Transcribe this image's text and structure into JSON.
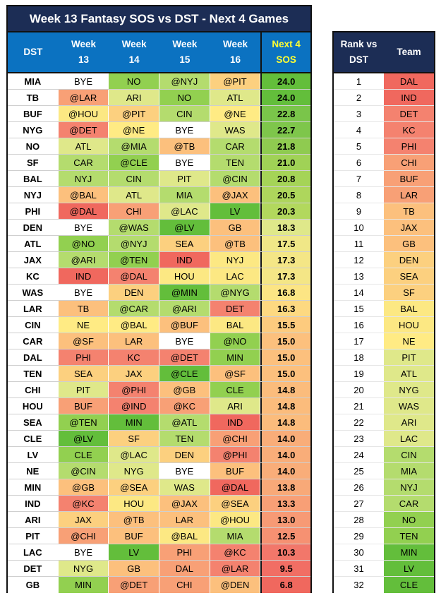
{
  "title": "Week 13 Fantasy SOS vs DST - Next 4 Games",
  "headers": {
    "dst": "DST",
    "weeks": [
      [
        "Week",
        "13"
      ],
      [
        "Week",
        "14"
      ],
      [
        "Week",
        "15"
      ],
      [
        "Week",
        "16"
      ]
    ],
    "next4": [
      "Next 4",
      "SOS"
    ]
  },
  "colors": {
    "white": "#ffffff",
    "g1": "#63be3b",
    "g2": "#92d050",
    "g3": "#b4dc6e",
    "y1": "#dfe88a",
    "y2": "#ffeb84",
    "o1": "#fcc07d",
    "o2": "#f8a076",
    "r1": "#f4826f",
    "r2": "#f0685e"
  },
  "rows": [
    {
      "team": "MIA",
      "games": [
        "BYE",
        "NO",
        "@NYJ",
        "@PIT"
      ],
      "bg": [
        "#ffffff",
        "#92d050",
        "#b4dc6e",
        "#fcd07f"
      ],
      "sos": "24.0",
      "sos_bg": "#63be3b"
    },
    {
      "team": "TB",
      "games": [
        "@LAR",
        "ARI",
        "NO",
        "ATL"
      ],
      "bg": [
        "#f8a076",
        "#dfe88a",
        "#92d050",
        "#dfe88a"
      ],
      "sos": "24.0",
      "sos_bg": "#63be3b"
    },
    {
      "team": "BUF",
      "games": [
        "@HOU",
        "@PIT",
        "CIN",
        "@NE"
      ],
      "bg": [
        "#fce883",
        "#fcd07f",
        "#b4dc6e",
        "#ffeb84"
      ],
      "sos": "22.8",
      "sos_bg": "#7ac54a"
    },
    {
      "team": "NYG",
      "games": [
        "@DET",
        "@NE",
        "BYE",
        "WAS"
      ],
      "bg": [
        "#f4826f",
        "#ffeb84",
        "#ffffff",
        "#dfe88a"
      ],
      "sos": "22.7",
      "sos_bg": "#7ec64b"
    },
    {
      "team": "NO",
      "games": [
        "ATL",
        "@MIA",
        "@TB",
        "CAR"
      ],
      "bg": [
        "#dfe88a",
        "#b4dc6e",
        "#fcc07d",
        "#b4dc6e"
      ],
      "sos": "21.8",
      "sos_bg": "#8fcb50"
    },
    {
      "team": "SF",
      "games": [
        "CAR",
        "@CLE",
        "BYE",
        "TEN"
      ],
      "bg": [
        "#b4dc6e",
        "#92d050",
        "#ffffff",
        "#b4dc6e"
      ],
      "sos": "21.0",
      "sos_bg": "#a0d256"
    },
    {
      "team": "BAL",
      "games": [
        "NYJ",
        "CIN",
        "PIT",
        "@CIN"
      ],
      "bg": [
        "#b4dc6e",
        "#b4dc6e",
        "#dfe88a",
        "#b4dc6e"
      ],
      "sos": "20.8",
      "sos_bg": "#a5d457"
    },
    {
      "team": "NYJ",
      "games": [
        "@BAL",
        "ATL",
        "MIA",
        "@JAX"
      ],
      "bg": [
        "#fcc07d",
        "#dfe88a",
        "#b4dc6e",
        "#fcc07d"
      ],
      "sos": "20.5",
      "sos_bg": "#aed65c"
    },
    {
      "team": "PHI",
      "games": [
        "@DAL",
        "CHI",
        "@LAC",
        "LV"
      ],
      "bg": [
        "#f0685e",
        "#f8a076",
        "#dfe88a",
        "#63be3b"
      ],
      "sos": "20.3",
      "sos_bg": "#b2d85d"
    },
    {
      "team": "DEN",
      "games": [
        "BYE",
        "@WAS",
        "@LV",
        "GB"
      ],
      "bg": [
        "#ffffff",
        "#b4dc6e",
        "#63be3b",
        "#fcc07d"
      ],
      "sos": "18.3",
      "sos_bg": "#dfe88a"
    },
    {
      "team": "ATL",
      "games": [
        "@NO",
        "@NYJ",
        "SEA",
        "@TB"
      ],
      "bg": [
        "#92d050",
        "#b4dc6e",
        "#fcd07f",
        "#fcc07d"
      ],
      "sos": "17.5",
      "sos_bg": "#f0e787"
    },
    {
      "team": "JAX",
      "games": [
        "@ARI",
        "@TEN",
        "IND",
        "NYJ"
      ],
      "bg": [
        "#b4dc6e",
        "#92d050",
        "#f0685e",
        "#fce883"
      ],
      "sos": "17.3",
      "sos_bg": "#f4e686"
    },
    {
      "team": "KC",
      "games": [
        "IND",
        "@DAL",
        "HOU",
        "LAC"
      ],
      "bg": [
        "#f0685e",
        "#f4826f",
        "#fce883",
        "#fce883"
      ],
      "sos": "17.3",
      "sos_bg": "#f4e686"
    },
    {
      "team": "WAS",
      "games": [
        "BYE",
        "DEN",
        "@MIN",
        "@NYG"
      ],
      "bg": [
        "#ffffff",
        "#fcd07f",
        "#63be3b",
        "#b4dc6e"
      ],
      "sos": "16.8",
      "sos_bg": "#fce584"
    },
    {
      "team": "LAR",
      "games": [
        "TB",
        "@CAR",
        "@ARI",
        "DET"
      ],
      "bg": [
        "#fcc07d",
        "#b4dc6e",
        "#b4dc6e",
        "#f4826f"
      ],
      "sos": "16.3",
      "sos_bg": "#fdd981"
    },
    {
      "team": "CIN",
      "games": [
        "NE",
        "@BAL",
        "@BUF",
        "BAL"
      ],
      "bg": [
        "#ffeb84",
        "#ffeb84",
        "#fcc07d",
        "#fce883"
      ],
      "sos": "15.5",
      "sos_bg": "#fdcb7e"
    },
    {
      "team": "CAR",
      "games": [
        "@SF",
        "LAR",
        "BYE",
        "@NO"
      ],
      "bg": [
        "#fcc07d",
        "#fcc07d",
        "#ffffff",
        "#92d050"
      ],
      "sos": "15.0",
      "sos_bg": "#fcc07d"
    },
    {
      "team": "DAL",
      "games": [
        "PHI",
        "KC",
        "@DET",
        "MIN"
      ],
      "bg": [
        "#f4826f",
        "#f4826f",
        "#f4826f",
        "#92d050"
      ],
      "sos": "15.0",
      "sos_bg": "#fcc07d"
    },
    {
      "team": "TEN",
      "games": [
        "SEA",
        "JAX",
        "@CLE",
        "@SF"
      ],
      "bg": [
        "#fcd07f",
        "#fcd07f",
        "#63be3b",
        "#fcc07d"
      ],
      "sos": "15.0",
      "sos_bg": "#fcc07d"
    },
    {
      "team": "CHI",
      "games": [
        "PIT",
        "@PHI",
        "@GB",
        "CLE"
      ],
      "bg": [
        "#dfe88a",
        "#f4826f",
        "#fcc07d",
        "#92d050"
      ],
      "sos": "14.8",
      "sos_bg": "#fbbc7c"
    },
    {
      "team": "HOU",
      "games": [
        "BUF",
        "@IND",
        "@KC",
        "ARI"
      ],
      "bg": [
        "#f8a076",
        "#f4826f",
        "#f8a076",
        "#dfe88a"
      ],
      "sos": "14.8",
      "sos_bg": "#fbbc7c"
    },
    {
      "team": "SEA",
      "games": [
        "@TEN",
        "MIN",
        "@ATL",
        "IND"
      ],
      "bg": [
        "#92d050",
        "#63be3b",
        "#b4dc6e",
        "#f0685e"
      ],
      "sos": "14.8",
      "sos_bg": "#fbbc7c"
    },
    {
      "team": "CLE",
      "games": [
        "@LV",
        "SF",
        "TEN",
        "@CHI"
      ],
      "bg": [
        "#63be3b",
        "#fcd07f",
        "#b4dc6e",
        "#f8a076"
      ],
      "sos": "14.0",
      "sos_bg": "#f9ad79"
    },
    {
      "team": "LV",
      "games": [
        "CLE",
        "@LAC",
        "DEN",
        "@PHI"
      ],
      "bg": [
        "#92d050",
        "#dfe88a",
        "#fcd07f",
        "#f4826f"
      ],
      "sos": "14.0",
      "sos_bg": "#f9ad79"
    },
    {
      "team": "NE",
      "games": [
        "@CIN",
        "NYG",
        "BYE",
        "BUF"
      ],
      "bg": [
        "#b4dc6e",
        "#dfe88a",
        "#ffffff",
        "#fcc07d"
      ],
      "sos": "14.0",
      "sos_bg": "#f9ad79"
    },
    {
      "team": "MIN",
      "games": [
        "@GB",
        "@SEA",
        "WAS",
        "@DAL"
      ],
      "bg": [
        "#fcc07d",
        "#fcd07f",
        "#dfe88a",
        "#f0685e"
      ],
      "sos": "13.8",
      "sos_bg": "#f8a978"
    },
    {
      "team": "IND",
      "games": [
        "@KC",
        "HOU",
        "@JAX",
        "@SEA"
      ],
      "bg": [
        "#f4826f",
        "#fce883",
        "#fcc07d",
        "#fcd07f"
      ],
      "sos": "13.3",
      "sos_bg": "#f89f76"
    },
    {
      "team": "ARI",
      "games": [
        "JAX",
        "@TB",
        "LAR",
        "@HOU"
      ],
      "bg": [
        "#fcd07f",
        "#fcc07d",
        "#fcc07d",
        "#fce883"
      ],
      "sos": "13.0",
      "sos_bg": "#f79a75"
    },
    {
      "team": "PIT",
      "games": [
        "@CHI",
        "BUF",
        "@BAL",
        "MIA"
      ],
      "bg": [
        "#f8a076",
        "#fcc07d",
        "#fce883",
        "#b4dc6e"
      ],
      "sos": "12.5",
      "sos_bg": "#f69172"
    },
    {
      "team": "LAC",
      "games": [
        "BYE",
        "LV",
        "PHI",
        "@KC"
      ],
      "bg": [
        "#ffffff",
        "#63be3b",
        "#f8a076",
        "#f4826f"
      ],
      "sos": "10.3",
      "sos_bg": "#f2776a"
    },
    {
      "team": "DET",
      "games": [
        "NYG",
        "GB",
        "DAL",
        "@LAR"
      ],
      "bg": [
        "#dfe88a",
        "#fcc07d",
        "#f8a076",
        "#f4826f"
      ],
      "sos": "9.5",
      "sos_bg": "#f16e64"
    },
    {
      "team": "GB",
      "games": [
        "MIN",
        "@DET",
        "CHI",
        "@DEN"
      ],
      "bg": [
        "#92d050",
        "#f8a076",
        "#f8a076",
        "#fcc07d"
      ],
      "sos": "6.8",
      "sos_bg": "#f0685e"
    }
  ],
  "rank_headers": [
    "Rank vs DST",
    "Team"
  ],
  "rank": [
    {
      "rank": "1",
      "team": "DAL",
      "bg": "#f0685e"
    },
    {
      "rank": "2",
      "team": "IND",
      "bg": "#f0685e"
    },
    {
      "rank": "3",
      "team": "DET",
      "bg": "#f4826f"
    },
    {
      "rank": "4",
      "team": "KC",
      "bg": "#f4826f"
    },
    {
      "rank": "5",
      "team": "PHI",
      "bg": "#f4826f"
    },
    {
      "rank": "6",
      "team": "CHI",
      "bg": "#f8a076"
    },
    {
      "rank": "7",
      "team": "BUF",
      "bg": "#f8a076"
    },
    {
      "rank": "8",
      "team": "LAR",
      "bg": "#f8a076"
    },
    {
      "rank": "9",
      "team": "TB",
      "bg": "#fcc07d"
    },
    {
      "rank": "10",
      "team": "JAX",
      "bg": "#fcc07d"
    },
    {
      "rank": "11",
      "team": "GB",
      "bg": "#fcc07d"
    },
    {
      "rank": "12",
      "team": "DEN",
      "bg": "#fcd07f"
    },
    {
      "rank": "13",
      "team": "SEA",
      "bg": "#fcd07f"
    },
    {
      "rank": "14",
      "team": "SF",
      "bg": "#fcd07f"
    },
    {
      "rank": "15",
      "team": "BAL",
      "bg": "#fce883"
    },
    {
      "rank": "16",
      "team": "HOU",
      "bg": "#fce883"
    },
    {
      "rank": "17",
      "team": "NE",
      "bg": "#ffeb84"
    },
    {
      "rank": "18",
      "team": "PIT",
      "bg": "#dfe88a"
    },
    {
      "rank": "19",
      "team": "ATL",
      "bg": "#dfe88a"
    },
    {
      "rank": "20",
      "team": "NYG",
      "bg": "#dfe88a"
    },
    {
      "rank": "21",
      "team": "WAS",
      "bg": "#dfe88a"
    },
    {
      "rank": "22",
      "team": "ARI",
      "bg": "#dfe88a"
    },
    {
      "rank": "23",
      "team": "LAC",
      "bg": "#dfe88a"
    },
    {
      "rank": "24",
      "team": "CIN",
      "bg": "#b4dc6e"
    },
    {
      "rank": "25",
      "team": "MIA",
      "bg": "#b4dc6e"
    },
    {
      "rank": "26",
      "team": "NYJ",
      "bg": "#b4dc6e"
    },
    {
      "rank": "27",
      "team": "CAR",
      "bg": "#b4dc6e"
    },
    {
      "rank": "28",
      "team": "NO",
      "bg": "#92d050"
    },
    {
      "rank": "29",
      "team": "TEN",
      "bg": "#92d050"
    },
    {
      "rank": "30",
      "team": "MIN",
      "bg": "#63be3b"
    },
    {
      "rank": "31",
      "team": "LV",
      "bg": "#63be3b"
    },
    {
      "rank": "32",
      "team": "CLE",
      "bg": "#63be3b"
    }
  ]
}
